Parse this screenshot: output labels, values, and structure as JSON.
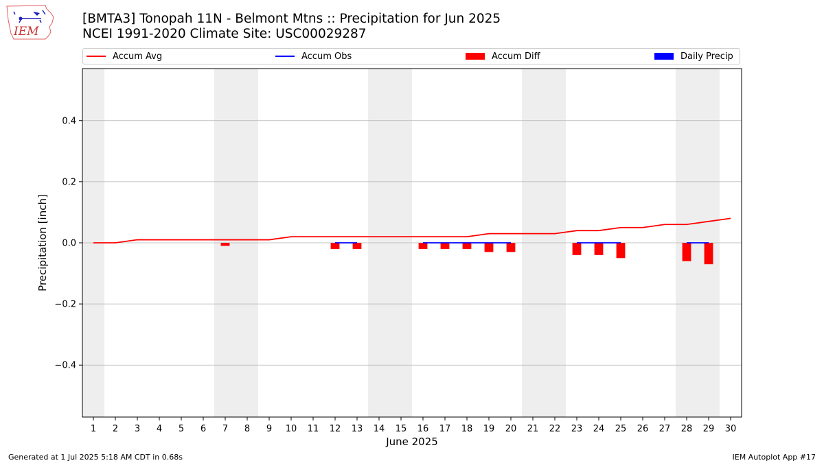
{
  "header": {
    "title_line1": "[BMTA3] Tonopah 11N - Belmont Mtns :: Precipitation for Jun 2025",
    "title_line2": "NCEI 1991-2020 Climate Site: USC00029287",
    "logo_icon": "iem-logo-icon"
  },
  "legend": {
    "items": [
      {
        "label": "Accum Avg",
        "kind": "line",
        "color": "#ff0000"
      },
      {
        "label": "Accum Obs",
        "kind": "line",
        "color": "#0000ff"
      },
      {
        "label": "Accum Diff",
        "kind": "patch",
        "color": "#ff0000"
      },
      {
        "label": "Daily Precip",
        "kind": "patch",
        "color": "#0000ff"
      }
    ]
  },
  "footer": {
    "generated": "Generated at 1 Jul 2025 5:18 AM CDT in 0.68s",
    "app": "IEM Autoplot App #17"
  },
  "chart_data": {
    "type": "line",
    "title": "[BMTA3] Tonopah 11N - Belmont Mtns :: Precipitation for Jun 2025",
    "xlabel": "June 2025",
    "ylabel": "Precipitation [inch]",
    "xlim": [
      0.5,
      30.5
    ],
    "ylim": [
      -0.57,
      0.57
    ],
    "x_ticks": [
      1,
      2,
      3,
      4,
      5,
      6,
      7,
      8,
      9,
      10,
      11,
      12,
      13,
      14,
      15,
      16,
      17,
      18,
      19,
      20,
      21,
      22,
      23,
      24,
      25,
      26,
      27,
      28,
      29,
      30
    ],
    "y_ticks": [
      -0.4,
      -0.2,
      0.0,
      0.2,
      0.4
    ],
    "y_tick_labels": [
      "−0.4",
      "−0.2",
      "0.0",
      "0.2",
      "0.4"
    ],
    "grid": "y",
    "weekend_shading": [
      1,
      7,
      8,
      14,
      15,
      21,
      22,
      28,
      29
    ],
    "series": [
      {
        "name": "Accum Avg",
        "type": "line",
        "color": "#ff0000",
        "x": [
          1,
          2,
          3,
          4,
          5,
          6,
          7,
          8,
          9,
          10,
          11,
          12,
          13,
          14,
          15,
          16,
          17,
          18,
          19,
          20,
          21,
          22,
          23,
          24,
          25,
          26,
          27,
          28,
          29,
          30
        ],
        "values": [
          0.0,
          0.0,
          0.01,
          0.01,
          0.01,
          0.01,
          0.01,
          0.01,
          0.01,
          0.02,
          0.02,
          0.02,
          0.02,
          0.02,
          0.02,
          0.02,
          0.02,
          0.02,
          0.03,
          0.03,
          0.03,
          0.03,
          0.04,
          0.04,
          0.05,
          0.05,
          0.06,
          0.06,
          0.07,
          0.08
        ]
      },
      {
        "name": "Accum Obs",
        "type": "line",
        "color": "#0000ff",
        "segments": [
          {
            "x": [
              12,
              13
            ],
            "values": [
              0.0,
              0.0
            ]
          },
          {
            "x": [
              16,
              17,
              18,
              19,
              20
            ],
            "values": [
              0.0,
              0.0,
              0.0,
              0.0,
              0.0
            ]
          },
          {
            "x": [
              23,
              24,
              25
            ],
            "values": [
              0.0,
              0.0,
              0.0
            ]
          },
          {
            "x": [
              28,
              29
            ],
            "values": [
              0.0,
              0.0
            ]
          }
        ]
      },
      {
        "name": "Accum Diff",
        "type": "bar",
        "color": "#ff0000",
        "x": [
          7,
          12,
          13,
          16,
          17,
          18,
          19,
          20,
          23,
          24,
          25,
          28,
          29
        ],
        "values": [
          -0.01,
          -0.02,
          -0.02,
          -0.02,
          -0.02,
          -0.02,
          -0.03,
          -0.03,
          -0.04,
          -0.04,
          -0.05,
          -0.06,
          -0.07
        ]
      },
      {
        "name": "Daily Precip",
        "type": "bar",
        "color": "#0000ff",
        "x": [],
        "values": []
      }
    ]
  }
}
